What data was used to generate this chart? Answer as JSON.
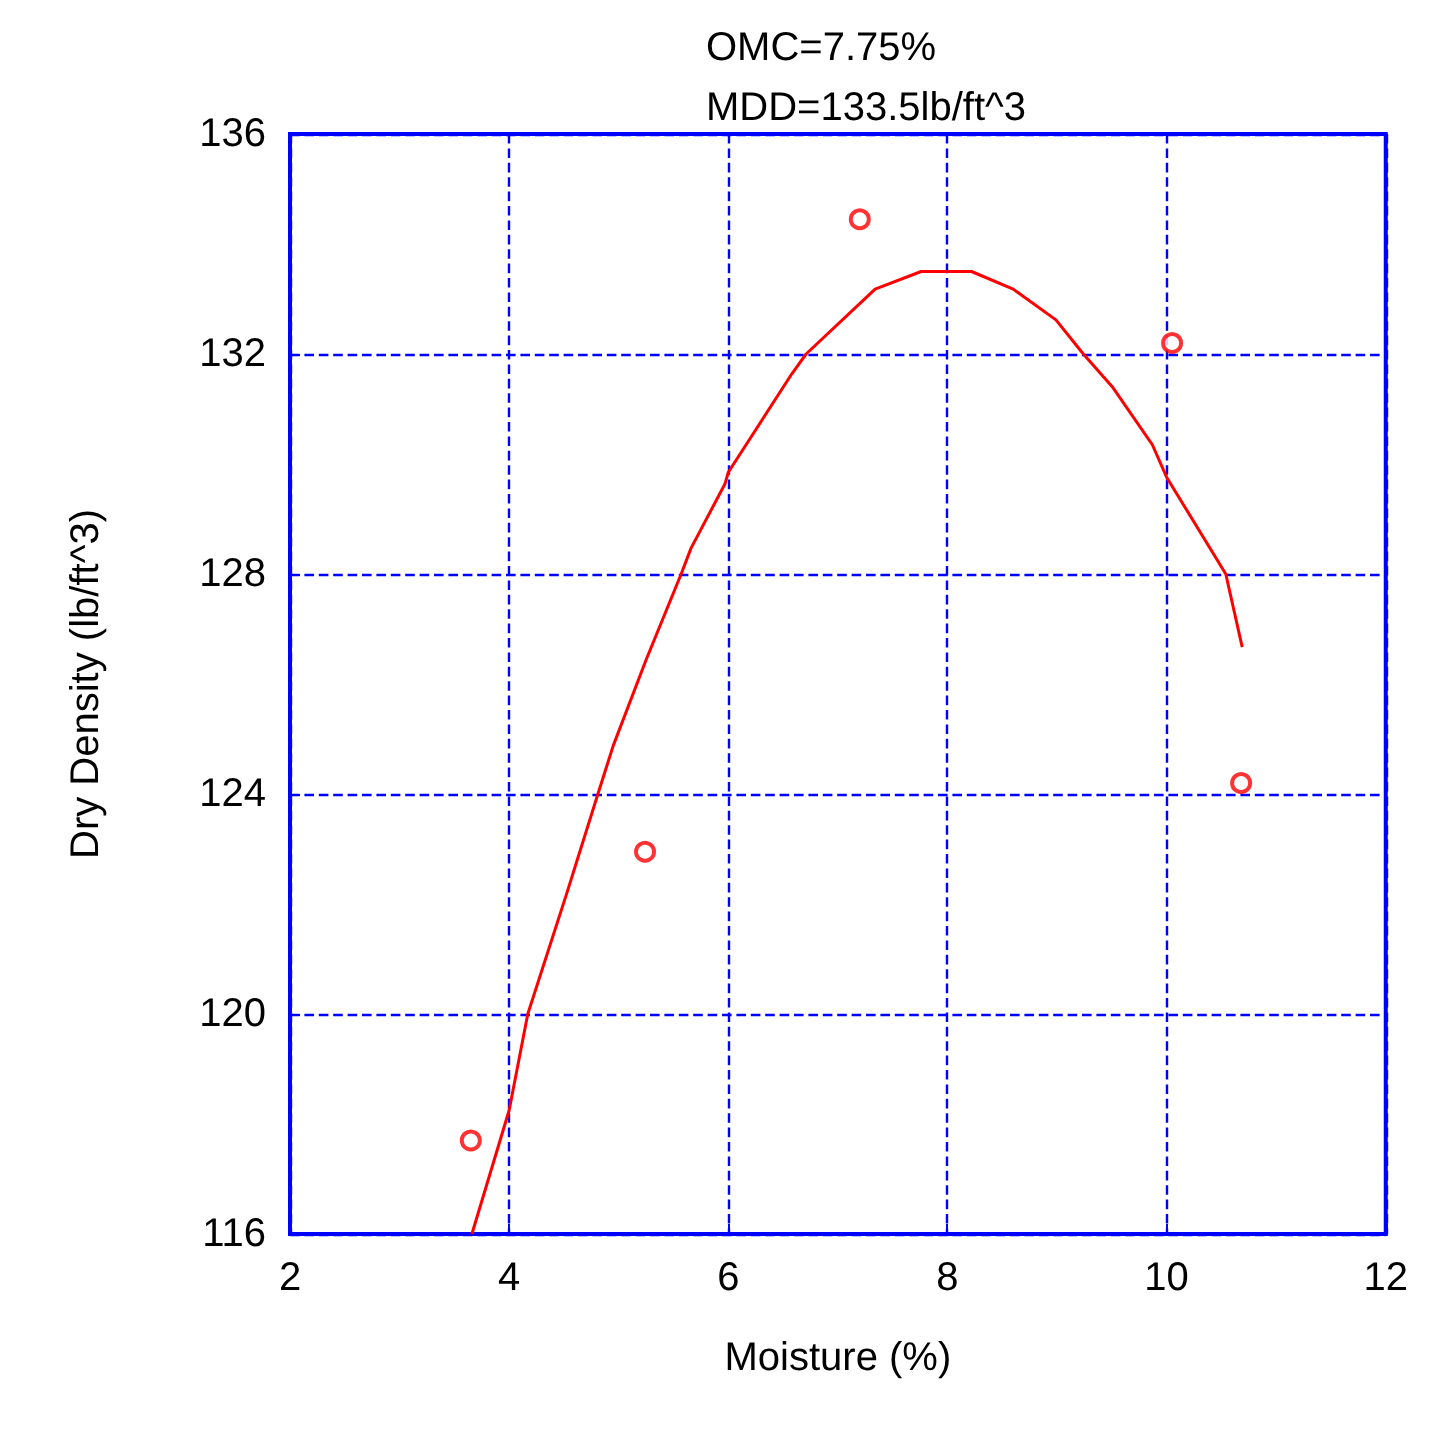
{
  "chart_data": {
    "type": "scatter",
    "xlabel": "Moisture (%)",
    "ylabel": "Dry Density (lb/ft^3)",
    "annotations": [
      "OMC=7.75%",
      "MDD=133.5lb/ft^3"
    ],
    "series": [
      {
        "color": "#ff0000",
        "marker": "circle",
        "x": [
          3.65,
          5.24,
          7.2,
          10.05,
          10.68
        ],
        "values": [
          117.7,
          122.95,
          134.45,
          132.2,
          124.2
        ]
      },
      {
        "type": "line",
        "color": "#ff0000",
        "marker": "none",
        "line_style": "solid",
        "x": [
          3.66,
          4.0,
          4.17,
          4.53,
          4.81,
          4.95,
          5.25,
          5.57,
          5.66,
          5.97,
          6.0,
          6.58,
          6.71,
          7.34,
          7.76,
          8.22,
          8.6,
          8.99,
          9.24,
          9.51,
          9.87,
          10.0,
          10.54,
          10.69
        ],
        "values": [
          116,
          118.25,
          120,
          122.22,
          124,
          124.88,
          126.44,
          128,
          128.47,
          129.64,
          129.85,
          131.64,
          132,
          133.18,
          133.5,
          133.5,
          133.18,
          132.62,
          132,
          131.39,
          130.35,
          129.76,
          128,
          126.67
        ]
      }
    ],
    "xlim": [
      2,
      12
    ],
    "xticks": [
      2,
      4,
      6,
      8,
      10,
      12
    ],
    "ylim": [
      116,
      136
    ],
    "yticks": [
      116,
      120,
      124,
      128,
      132,
      136
    ],
    "grid": true
  }
}
